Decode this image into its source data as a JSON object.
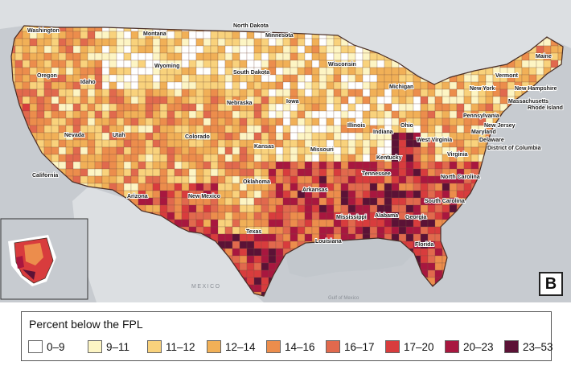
{
  "panel_label": "B",
  "legend": {
    "title": "Percent below the FPL",
    "classes": [
      {
        "label": "0–9",
        "color": "#ffffff"
      },
      {
        "label": "9–11",
        "color": "#fdf5c4"
      },
      {
        "label": "11–12",
        "color": "#f9d27c"
      },
      {
        "label": "12–14",
        "color": "#f1b057"
      },
      {
        "label": "14–16",
        "color": "#ec8d4c"
      },
      {
        "label": "16–17",
        "color": "#e1694d"
      },
      {
        "label": "17–20",
        "color": "#d83c3d"
      },
      {
        "label": "20–23",
        "color": "#a8173f"
      },
      {
        "label": "23–53",
        "color": "#5b1236"
      }
    ]
  },
  "labels": {
    "mexico": "MEXICO",
    "gulf": "Gulf of Mexico",
    "states": [
      {
        "name": "Washington"
      },
      {
        "name": "Montana"
      },
      {
        "name": "North Dakota"
      },
      {
        "name": "Minnesota"
      },
      {
        "name": "Oregon"
      },
      {
        "name": "Idaho"
      },
      {
        "name": "Wyoming"
      },
      {
        "name": "South Dakota"
      },
      {
        "name": "Wisconsin"
      },
      {
        "name": "Michigan"
      },
      {
        "name": "Maine"
      },
      {
        "name": "Vermont"
      },
      {
        "name": "New Hampshire"
      },
      {
        "name": "New York"
      },
      {
        "name": "Massachusetts"
      },
      {
        "name": "Rhode Island"
      },
      {
        "name": "Nebraska"
      },
      {
        "name": "Iowa"
      },
      {
        "name": "Nevada"
      },
      {
        "name": "Utah"
      },
      {
        "name": "Colorado"
      },
      {
        "name": "Pennsylvania"
      },
      {
        "name": "New Jersey"
      },
      {
        "name": "Illinois"
      },
      {
        "name": "Indiana"
      },
      {
        "name": "Ohio"
      },
      {
        "name": "Maryland"
      },
      {
        "name": "Delaware"
      },
      {
        "name": "District of Columbia"
      },
      {
        "name": "California"
      },
      {
        "name": "Kansas"
      },
      {
        "name": "Missouri"
      },
      {
        "name": "West Virginia"
      },
      {
        "name": "Virginia"
      },
      {
        "name": "Kentucky"
      },
      {
        "name": "Tennessee"
      },
      {
        "name": "Oklahoma"
      },
      {
        "name": "Arkansas"
      },
      {
        "name": "North Carolina"
      },
      {
        "name": "Arizona"
      },
      {
        "name": "New Mexico"
      },
      {
        "name": "South Carolina"
      },
      {
        "name": "Mississippi"
      },
      {
        "name": "Alabama"
      },
      {
        "name": "Georgia"
      },
      {
        "name": "Texas"
      },
      {
        "name": "Louisiana"
      },
      {
        "name": "Florida"
      }
    ]
  }
}
